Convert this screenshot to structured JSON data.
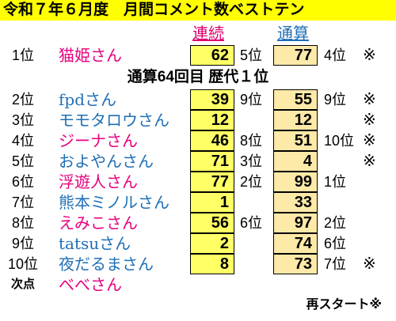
{
  "title": "令和７年６月度　月間コメント数ベストテン",
  "headers": {
    "ren": "連続",
    "tsu": "通算"
  },
  "note": "通算64回目 歴代１位",
  "rows": [
    {
      "rank": "1位",
      "name": "猫姫さん",
      "color": "pink",
      "ren": "62",
      "ren_prev": "5位",
      "tsu": "77",
      "tsu_prev": "4位",
      "mark": "※"
    },
    {
      "rank": "2位",
      "name": "fpdさん",
      "color": "blue",
      "ren": "39",
      "ren_prev": "9位",
      "tsu": "55",
      "tsu_prev": "9位",
      "mark": "※"
    },
    {
      "rank": "3位",
      "name": "モモタロウさん",
      "color": "blue",
      "ren": "12",
      "ren_prev": "",
      "tsu": "12",
      "tsu_prev": "",
      "mark": "※"
    },
    {
      "rank": "4位",
      "name": "ジーナさん",
      "color": "pink",
      "ren": "46",
      "ren_prev": "8位",
      "tsu": "51",
      "tsu_prev": "10位",
      "mark": "※"
    },
    {
      "rank": "5位",
      "name": "およやんさん",
      "color": "blue",
      "ren": "71",
      "ren_prev": "3位",
      "tsu": "4",
      "tsu_prev": "",
      "mark": "※"
    },
    {
      "rank": "6位",
      "name": "浮遊人さん",
      "color": "pink",
      "ren": "77",
      "ren_prev": "2位",
      "tsu": "99",
      "tsu_prev": "1位",
      "mark": ""
    },
    {
      "rank": "7位",
      "name": "熊本ミノルさん",
      "color": "blue",
      "ren": "1",
      "ren_prev": "",
      "tsu": "33",
      "tsu_prev": "",
      "mark": ""
    },
    {
      "rank": "8位",
      "name": "えみこさん",
      "color": "pink",
      "ren": "56",
      "ren_prev": "6位",
      "tsu": "97",
      "tsu_prev": "2位",
      "mark": ""
    },
    {
      "rank": "9位",
      "name": "tatsuさん",
      "color": "blue",
      "ren": "2",
      "ren_prev": "",
      "tsu": "74",
      "tsu_prev": "6位",
      "mark": ""
    },
    {
      "rank": "10位",
      "name": "夜だるまさん",
      "color": "blue",
      "ren": "8",
      "ren_prev": "",
      "tsu": "73",
      "tsu_prev": "7位",
      "mark": "※"
    }
  ],
  "next": {
    "rank": "次点",
    "name": "べべさん"
  },
  "footer": "再スタート※"
}
